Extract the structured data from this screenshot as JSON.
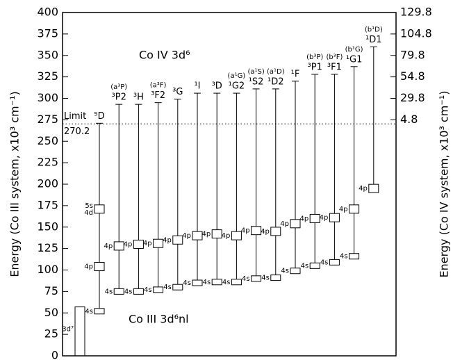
{
  "chart_data": {
    "type": "level-diagram",
    "y_label": "Energy (Co III system, x10³ cm⁻¹)",
    "y2_label": "Energy (Co IV system, x10³ cm⁻¹)",
    "ylim": [
      0,
      400
    ],
    "yticks": [
      0,
      25,
      50,
      75,
      100,
      125,
      150,
      175,
      200,
      225,
      250,
      275,
      300,
      325,
      350,
      375,
      400
    ],
    "y2lim": [
      -270.2,
      129.8
    ],
    "y2ticks": [
      4.8,
      29.8,
      54.8,
      79.8,
      104.8,
      129.8
    ],
    "limit": 270.2,
    "limit_label": "Limit",
    "annotations": [
      "Co IV 3d⁶",
      "Co III 3d⁶nl"
    ],
    "ground": {
      "label": "3d⁷",
      "value": 57
    },
    "terms": [
      {
        "name": "⁵D",
        "top": 271,
        "levels": [
          {
            "labels": [
              "4s"
            ],
            "value": 52
          },
          {
            "labels": [
              "4p"
            ],
            "value": 104
          },
          {
            "labels": [
              "5s",
              "4d"
            ],
            "value": 171
          }
        ]
      },
      {
        "prefix": "(a³P)",
        "name": "³P2",
        "top": 293,
        "levels": [
          {
            "labels": [
              "4s"
            ],
            "value": 75
          },
          {
            "labels": [
              "4p"
            ],
            "value": 128
          }
        ]
      },
      {
        "name": "³H",
        "top": 293,
        "levels": [
          {
            "labels": [
              "4s"
            ],
            "value": 75
          },
          {
            "labels": [
              "4p"
            ],
            "value": 130
          }
        ]
      },
      {
        "prefix": "(a³F)",
        "name": "³F2",
        "top": 295,
        "levels": [
          {
            "labels": [
              "4s"
            ],
            "value": 77
          },
          {
            "labels": [
              "4p"
            ],
            "value": 131
          }
        ]
      },
      {
        "name": "³G",
        "top": 299,
        "levels": [
          {
            "labels": [
              "4s"
            ],
            "value": 80
          },
          {
            "labels": [
              "4p"
            ],
            "value": 135
          }
        ]
      },
      {
        "name": "¹I",
        "top": 306,
        "levels": [
          {
            "labels": [
              "4s"
            ],
            "value": 85
          },
          {
            "labels": [
              "4p"
            ],
            "value": 140
          }
        ]
      },
      {
        "name": "³D",
        "top": 306,
        "levels": [
          {
            "labels": [
              "4s"
            ],
            "value": 86
          },
          {
            "labels": [
              "4p"
            ],
            "value": 142
          }
        ]
      },
      {
        "prefix": "(a¹G)",
        "name": "¹G2",
        "top": 306,
        "levels": [
          {
            "labels": [
              "4s"
            ],
            "value": 86
          },
          {
            "labels": [
              "4p"
            ],
            "value": 140
          }
        ]
      },
      {
        "prefix": "(a¹S)",
        "name": "¹S2",
        "top": 311,
        "levels": [
          {
            "labels": [
              "4s"
            ],
            "value": 90
          },
          {
            "labels": [
              "4p"
            ],
            "value": 146
          }
        ]
      },
      {
        "prefix": "(a¹D)",
        "name": "¹D2",
        "top": 311,
        "levels": [
          {
            "labels": [
              "4s"
            ],
            "value": 91
          },
          {
            "labels": [
              "4p"
            ],
            "value": 145
          }
        ]
      },
      {
        "name": "¹F",
        "top": 320,
        "levels": [
          {
            "labels": [
              "4s"
            ],
            "value": 99
          },
          {
            "labels": [
              "4p"
            ],
            "value": 154
          }
        ]
      },
      {
        "prefix": "(b³P)",
        "name": "³P1",
        "top": 328,
        "levels": [
          {
            "labels": [
              "4s"
            ],
            "value": 105
          },
          {
            "labels": [
              "4p"
            ],
            "value": 160
          }
        ]
      },
      {
        "prefix": "(b³F)",
        "name": "³F1",
        "top": 328,
        "levels": [
          {
            "labels": [
              "4s"
            ],
            "value": 109
          },
          {
            "labels": [
              "4p"
            ],
            "value": 161
          }
        ]
      },
      {
        "prefix": "(b¹G)",
        "name": "¹G1",
        "top": 337,
        "levels": [
          {
            "labels": [
              "4s"
            ],
            "value": 116
          },
          {
            "labels": [
              "4p"
            ],
            "value": 171
          }
        ]
      },
      {
        "prefix": "(b¹D)",
        "name": "¹D1",
        "top": 360,
        "levels": [
          {
            "labels": [
              "4p"
            ],
            "value": 195
          }
        ]
      }
    ]
  }
}
